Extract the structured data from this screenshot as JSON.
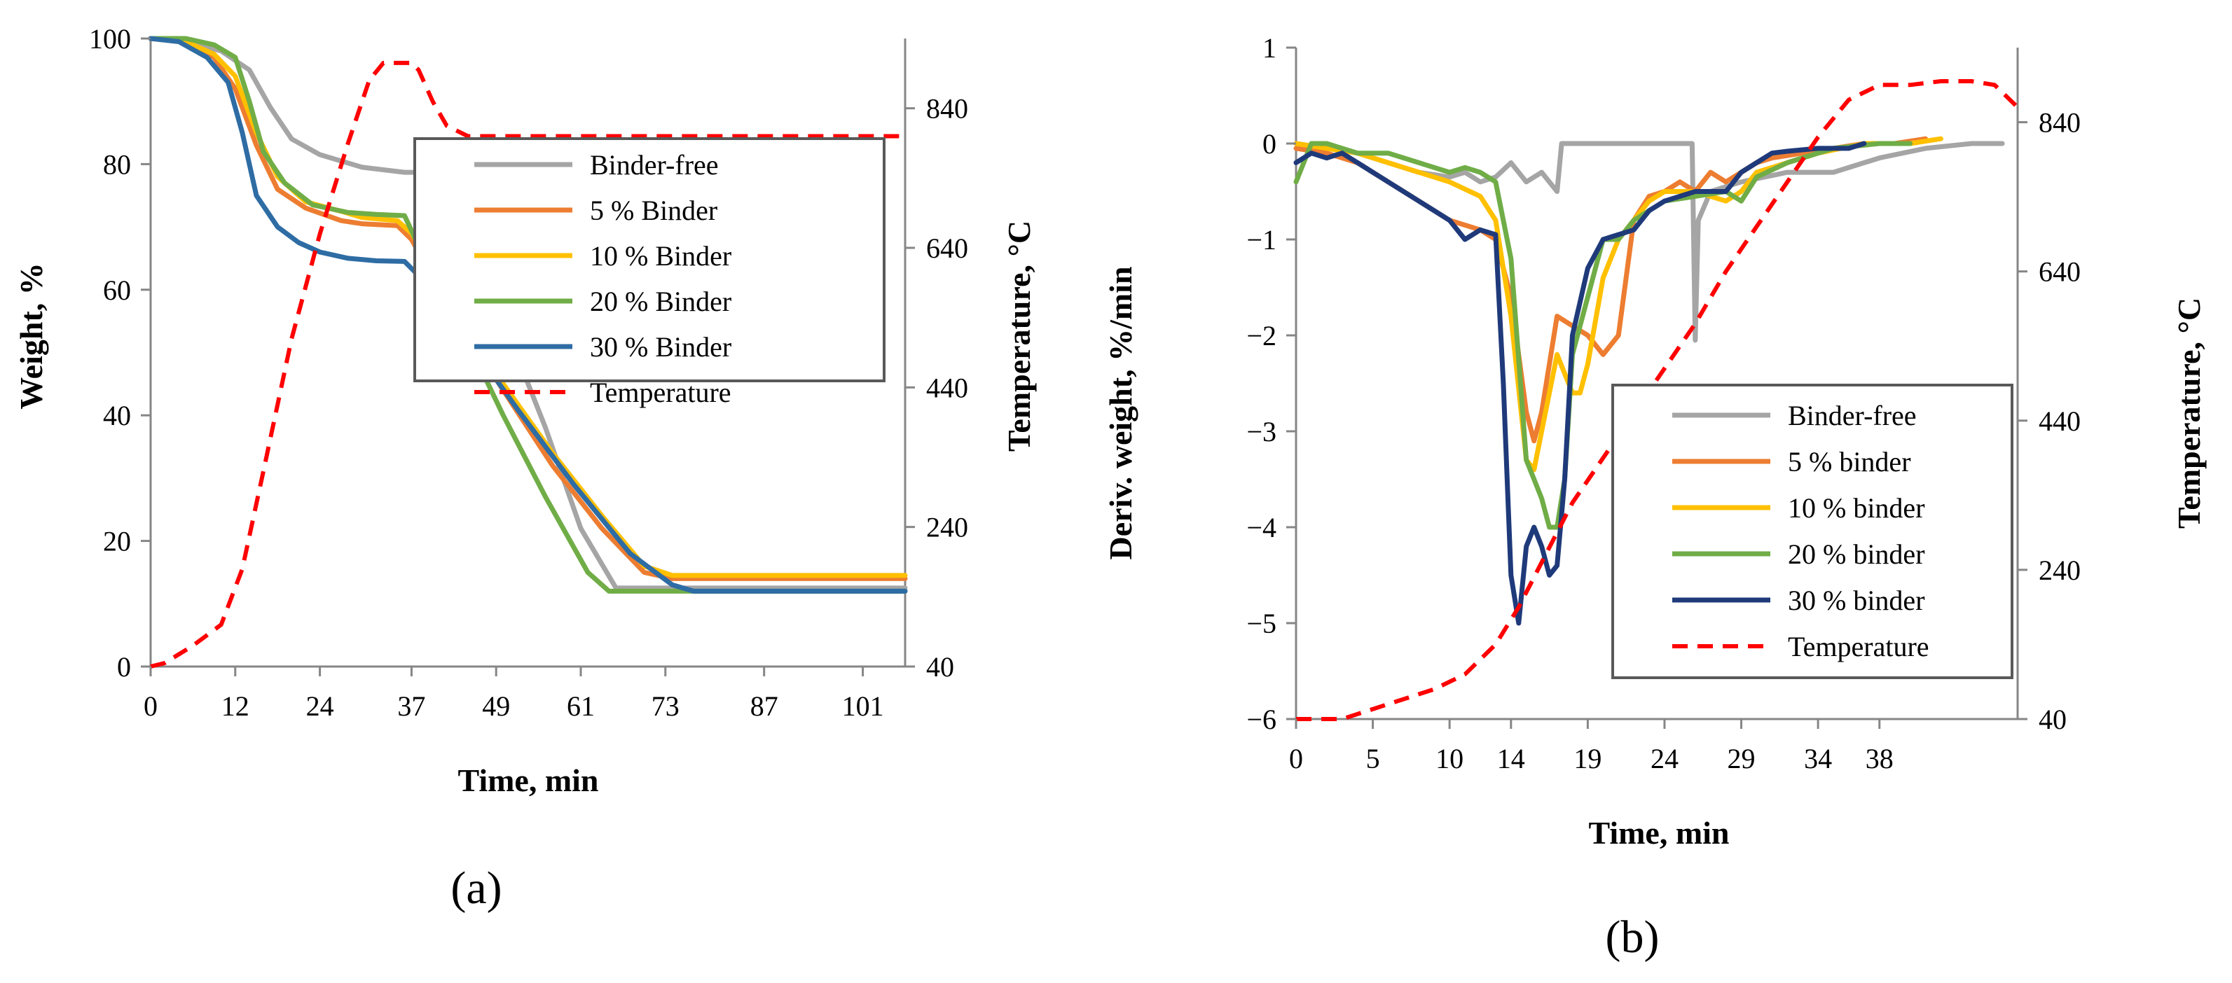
{
  "colors": {
    "binder_free": "#A5A5A5",
    "binder_5": "#ED7D31",
    "binder_10": "#FFC000",
    "binder_20": "#70AD47",
    "binder_30_a": "#2E6CA4",
    "binder_30_b": "#1F3A7A",
    "temperature": "#FF0000"
  },
  "chart_data": [
    {
      "panel": "a",
      "panel_label": "(a)",
      "type": "line",
      "xlabel": "Time, min",
      "ylabel": "Weight, %",
      "y2label": "Temperature, °C",
      "xlim": [
        0,
        107
      ],
      "ylim": [
        0,
        100
      ],
      "y2lim": [
        40,
        940
      ],
      "xticks": [
        0,
        12,
        24,
        37,
        49,
        61,
        73,
        87,
        101
      ],
      "yticks": [
        0,
        20,
        40,
        60,
        80,
        100
      ],
      "y2ticks": [
        40,
        240,
        440,
        640,
        840
      ],
      "legend_position": "center-right",
      "series": [
        {
          "name": "Binder-free",
          "color": "#A5A5A5",
          "dash": false,
          "axis": "left",
          "x": [
            0,
            5,
            10,
            14,
            17,
            20,
            24,
            30,
            36,
            39,
            41,
            44,
            50,
            56,
            61,
            66,
            70,
            80,
            90,
            107
          ],
          "y": [
            100,
            99.5,
            98,
            95,
            89,
            84,
            81.5,
            79.5,
            78.7,
            78.7,
            78.5,
            72,
            55,
            38,
            22,
            12.5,
            12.5,
            12.5,
            12.5,
            12.5
          ]
        },
        {
          "name": "5 % Binder",
          "color": "#ED7D31",
          "dash": false,
          "axis": "left",
          "x": [
            0,
            5,
            9,
            12,
            15,
            18,
            22,
            27,
            30,
            35,
            37,
            43,
            50,
            57,
            64,
            70,
            74,
            80,
            90,
            107
          ],
          "y": [
            100,
            99.5,
            97,
            92,
            83,
            76,
            73,
            71,
            70.5,
            70.2,
            68,
            56,
            44,
            32,
            22,
            15,
            14,
            14,
            14,
            14
          ]
        },
        {
          "name": "10 % Binder",
          "color": "#FFC000",
          "dash": false,
          "axis": "left",
          "x": [
            0,
            5,
            9,
            12,
            15,
            18,
            22,
            27,
            30,
            35,
            37,
            43,
            50,
            57,
            64,
            70,
            74,
            80,
            90,
            107
          ],
          "y": [
            100,
            99.5,
            97.5,
            94,
            85,
            78,
            74,
            72.5,
            71.5,
            71,
            69,
            58,
            45,
            34,
            24,
            16,
            14.5,
            14.5,
            14.5,
            14.5
          ]
        },
        {
          "name": "20 % Binder",
          "color": "#70AD47",
          "dash": false,
          "axis": "left",
          "x": [
            0,
            5,
            9,
            12,
            14,
            16,
            19,
            23,
            28,
            32,
            36,
            38,
            44,
            50,
            56,
            62,
            65,
            70,
            80,
            107
          ],
          "y": [
            100,
            100,
            99,
            97,
            90,
            82,
            77,
            73.5,
            72.3,
            72,
            71.8,
            67,
            54,
            40,
            27,
            15,
            12,
            12,
            12,
            12
          ]
        },
        {
          "name": "30 % Binder",
          "color": "#2E6CA4",
          "dash": false,
          "axis": "left",
          "x": [
            0,
            4,
            8,
            11,
            13,
            15,
            18,
            21,
            24,
            28,
            32,
            36,
            40,
            45,
            52,
            60,
            68,
            74,
            77,
            85,
            107
          ],
          "y": [
            100,
            99.5,
            97,
            93,
            85,
            75,
            70,
            67.5,
            66,
            65,
            64.6,
            64.5,
            60,
            52,
            41,
            29,
            18,
            13,
            12,
            12,
            12
          ]
        },
        {
          "name": "Temperature",
          "color": "#FF0000",
          "dash": true,
          "axis": "right",
          "x": [
            0,
            2,
            6,
            10,
            13,
            16,
            20,
            24,
            28,
            31,
            33,
            35,
            37,
            38,
            40,
            42,
            45,
            50,
            60,
            80,
            107
          ],
          "y": [
            40,
            45,
            70,
            100,
            180,
            320,
            510,
            660,
            790,
            880,
            905,
            905,
            905,
            895,
            850,
            815,
            800,
            800,
            800,
            800,
            800
          ]
        }
      ]
    },
    {
      "panel": "b",
      "panel_label": "(b)",
      "type": "line",
      "xlabel": "Time, min",
      "ylabel": "Deriv. weight, %/min",
      "y2label": "Temperature, °C",
      "xlim": [
        0,
        47
      ],
      "ylim": [
        -6,
        1
      ],
      "y2lim": [
        40,
        940
      ],
      "xticks": [
        0,
        5,
        10,
        14,
        19,
        24,
        29,
        34,
        38
      ],
      "yticks": [
        -6,
        -5,
        -4,
        -3,
        -2,
        -1,
        0,
        1
      ],
      "y2ticks": [
        40,
        240,
        440,
        640,
        840
      ],
      "legend_position": "center-right",
      "series": [
        {
          "name": "Binder-free",
          "color": "#A5A5A5",
          "dash": false,
          "axis": "left",
          "x": [
            0,
            2,
            4,
            6,
            8,
            10,
            11,
            12,
            13,
            14,
            15,
            16,
            17,
            17.3,
            20,
            24,
            25.8,
            26,
            26.2,
            27,
            29,
            32,
            35,
            38,
            41,
            44,
            46
          ],
          "y": [
            0,
            -0.05,
            -0.1,
            -0.2,
            -0.3,
            -0.35,
            -0.3,
            -0.4,
            -0.35,
            -0.2,
            -0.4,
            -0.3,
            -0.5,
            0,
            0,
            0,
            0,
            -2.05,
            -0.8,
            -0.5,
            -0.4,
            -0.3,
            -0.3,
            -0.15,
            -0.05,
            0,
            0
          ]
        },
        {
          "name": "5 % binder",
          "color": "#ED7D31",
          "dash": false,
          "axis": "left",
          "x": [
            0,
            2,
            4,
            6,
            8,
            10,
            12,
            13,
            14,
            15,
            15.5,
            16,
            17,
            18,
            19,
            20,
            21,
            22,
            23,
            24,
            25,
            26,
            27,
            28,
            29,
            30,
            31,
            33,
            35,
            37,
            39,
            41
          ],
          "y": [
            -0.05,
            -0.1,
            -0.2,
            -0.4,
            -0.6,
            -0.8,
            -0.9,
            -1.0,
            -1.6,
            -2.8,
            -3.1,
            -2.8,
            -1.8,
            -1.9,
            -2.0,
            -2.2,
            -2.0,
            -0.8,
            -0.55,
            -0.5,
            -0.4,
            -0.5,
            -0.3,
            -0.4,
            -0.3,
            -0.2,
            -0.15,
            -0.1,
            -0.05,
            0,
            0,
            0.05
          ]
        },
        {
          "name": "10 % binder",
          "color": "#FFC000",
          "dash": false,
          "axis": "left",
          "x": [
            0,
            2,
            4,
            6,
            8,
            10,
            12,
            13,
            14,
            15,
            15.5,
            16,
            17,
            18,
            18.5,
            19,
            20,
            21,
            22,
            23,
            24,
            25,
            26,
            27,
            28,
            29,
            30,
            32,
            34,
            37,
            40,
            42
          ],
          "y": [
            0,
            -0.05,
            -0.1,
            -0.2,
            -0.3,
            -0.4,
            -0.55,
            -0.8,
            -1.8,
            -3.3,
            -3.4,
            -3.0,
            -2.2,
            -2.6,
            -2.6,
            -2.3,
            -1.4,
            -1.0,
            -0.8,
            -0.6,
            -0.5,
            -0.5,
            -0.5,
            -0.55,
            -0.6,
            -0.5,
            -0.3,
            -0.2,
            -0.1,
            0,
            0,
            0.05
          ]
        },
        {
          "name": "20 % binder",
          "color": "#70AD47",
          "dash": false,
          "axis": "left",
          "x": [
            0,
            1,
            2,
            4,
            6,
            8,
            10,
            11,
            12,
            13,
            14,
            15,
            15.5,
            16,
            16.5,
            17,
            17.5,
            18,
            19,
            20,
            21,
            22,
            24,
            26,
            28,
            29,
            30,
            32,
            35,
            38,
            40
          ],
          "y": [
            -0.4,
            0,
            0,
            -0.1,
            -0.1,
            -0.2,
            -0.3,
            -0.25,
            -0.3,
            -0.4,
            -1.2,
            -3.3,
            -3.5,
            -3.7,
            -4.0,
            -4.0,
            -3.5,
            -2.2,
            -1.6,
            -1.0,
            -1.0,
            -0.8,
            -0.6,
            -0.55,
            -0.5,
            -0.6,
            -0.35,
            -0.2,
            -0.05,
            0,
            0
          ]
        },
        {
          "name": "30 % binder",
          "color": "#1F3A7A",
          "dash": false,
          "axis": "left",
          "x": [
            0,
            1,
            2,
            3,
            4,
            5,
            6,
            7,
            8,
            9,
            10,
            11,
            12,
            13,
            13.5,
            14,
            14.5,
            15,
            15.5,
            16,
            16.5,
            17,
            17.5,
            18,
            19,
            20,
            21,
            22,
            23,
            24,
            25,
            26,
            27,
            28,
            29,
            30,
            31,
            32,
            34,
            36,
            37
          ],
          "y": [
            -0.2,
            -0.1,
            -0.15,
            -0.1,
            -0.2,
            -0.3,
            -0.4,
            -0.5,
            -0.6,
            -0.7,
            -0.8,
            -1.0,
            -0.9,
            -0.95,
            -2.5,
            -4.5,
            -5.0,
            -4.2,
            -4.0,
            -4.2,
            -4.5,
            -4.4,
            -3.5,
            -2.0,
            -1.3,
            -1.0,
            -0.95,
            -0.9,
            -0.7,
            -0.6,
            -0.55,
            -0.5,
            -0.5,
            -0.5,
            -0.3,
            -0.2,
            -0.1,
            -0.08,
            -0.05,
            -0.05,
            0
          ]
        },
        {
          "name": "Temperature",
          "color": "#FF0000",
          "dash": true,
          "axis": "right",
          "x": [
            0,
            3,
            6,
            9,
            11,
            13,
            14.5,
            16,
            18,
            20,
            22,
            24,
            26,
            28,
            30,
            32,
            34,
            36,
            38,
            40,
            42,
            44,
            45.5,
            47
          ],
          "y": [
            40,
            40,
            60,
            80,
            100,
            140,
            190,
            250,
            330,
            390,
            450,
            510,
            570,
            640,
            700,
            760,
            820,
            870,
            890,
            890,
            895,
            895,
            890,
            860
          ]
        }
      ]
    }
  ]
}
